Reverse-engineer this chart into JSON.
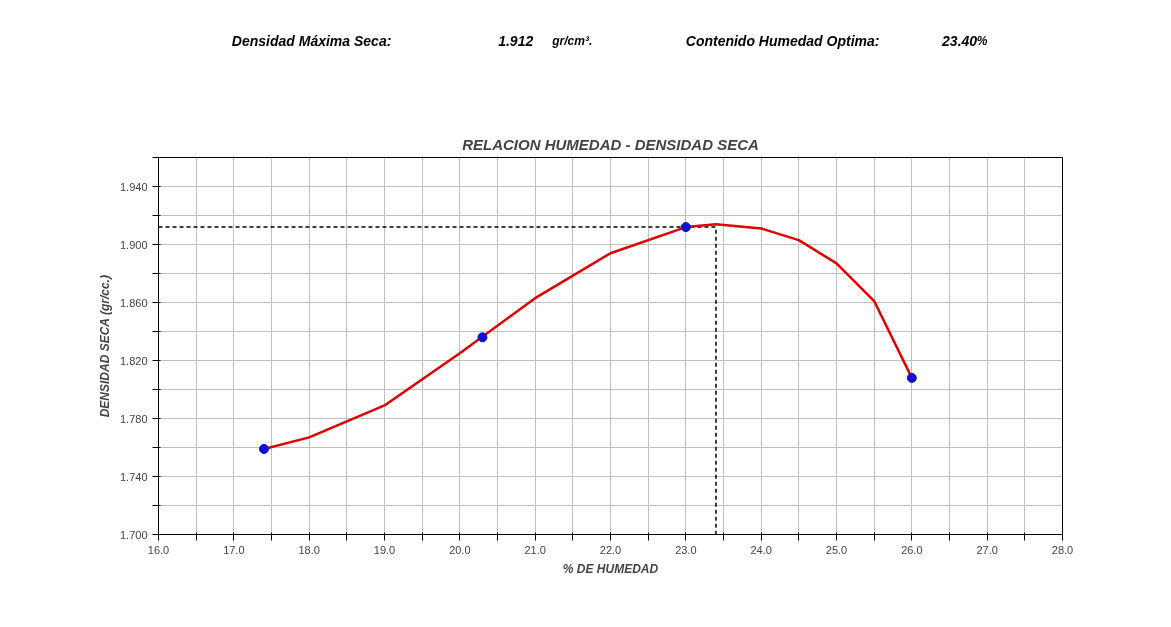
{
  "chart_data": {
    "type": "line",
    "title": "RELACION HUMEDAD - DENSIDAD SECA",
    "xlabel": "% DE HUMEDAD",
    "ylabel": "DENSIDAD SECA (gr/cc.)",
    "annotations": [
      "Densidad Máxima Seca:",
      "1.912",
      "gr/cm³.",
      "Contenido Humedad Optima:",
      "23.40",
      "%"
    ],
    "xlim": [
      16,
      28
    ],
    "ylim": [
      1.7,
      1.96
    ],
    "xticks": [
      {
        "value": 16,
        "label": "16.0"
      },
      {
        "value": 16.5,
        "label": null
      },
      {
        "value": 17,
        "label": "17.0"
      },
      {
        "value": 17.5,
        "label": null
      },
      {
        "value": 18,
        "label": "18.0"
      },
      {
        "value": 18.5,
        "label": null
      },
      {
        "value": 19,
        "label": "19.0"
      },
      {
        "value": 19.5,
        "label": null
      },
      {
        "value": 20,
        "label": "20.0"
      },
      {
        "value": 20.5,
        "label": null
      },
      {
        "value": 21,
        "label": "21.0"
      },
      {
        "value": 21.5,
        "label": null
      },
      {
        "value": 22,
        "label": "22.0"
      },
      {
        "value": 22.5,
        "label": null
      },
      {
        "value": 23,
        "label": "23.0"
      },
      {
        "value": 23.5,
        "label": null
      },
      {
        "value": 24,
        "label": "24.0"
      },
      {
        "value": 24.5,
        "label": null
      },
      {
        "value": 25,
        "label": "25.0"
      },
      {
        "value": 25.5,
        "label": null
      },
      {
        "value": 26,
        "label": "26.0"
      },
      {
        "value": 26.5,
        "label": null
      },
      {
        "value": 27,
        "label": "27.0"
      },
      {
        "value": 27.5,
        "label": null
      },
      {
        "value": 28,
        "label": "28.0"
      }
    ],
    "yticks": [
      {
        "value": 1.7,
        "label": "1.700"
      },
      {
        "value": 1.72,
        "label": null
      },
      {
        "value": 1.74,
        "label": "1.740"
      },
      {
        "value": 1.76,
        "label": null
      },
      {
        "value": 1.78,
        "label": "1.780"
      },
      {
        "value": 1.8,
        "label": null
      },
      {
        "value": 1.82,
        "label": "1.820"
      },
      {
        "value": 1.84,
        "label": null
      },
      {
        "value": 1.86,
        "label": "1.860"
      },
      {
        "value": 1.88,
        "label": null
      },
      {
        "value": 1.9,
        "label": "1.900"
      },
      {
        "value": 1.92,
        "label": null
      },
      {
        "value": 1.94,
        "label": "1.940"
      },
      {
        "value": 1.96,
        "label": null
      }
    ],
    "grid": true,
    "series": [
      {
        "type": "line",
        "color": "#000000",
        "line_style": "dashed",
        "marker": "none",
        "x": [
          16,
          23.4,
          23.4
        ],
        "values": [
          1.912,
          1.912,
          1.7
        ]
      },
      {
        "color": "#e00000",
        "line_style": "solid",
        "marker": "none",
        "x": [
          17.4,
          18,
          19,
          20,
          21,
          22,
          23,
          23.4,
          24,
          24.5,
          25,
          25.5,
          26
        ],
        "values": [
          1.759,
          1.767,
          1.789,
          1.825,
          1.863,
          1.894,
          1.912,
          1.914,
          1.911,
          1.903,
          1.887,
          1.861,
          1.808
        ]
      },
      {
        "type": "scatter",
        "color": "#1010d0",
        "marker": "circle",
        "x": [
          17.4,
          20.3,
          23.0,
          26.0
        ],
        "values": [
          1.759,
          1.836,
          1.912,
          1.808
        ]
      }
    ]
  }
}
